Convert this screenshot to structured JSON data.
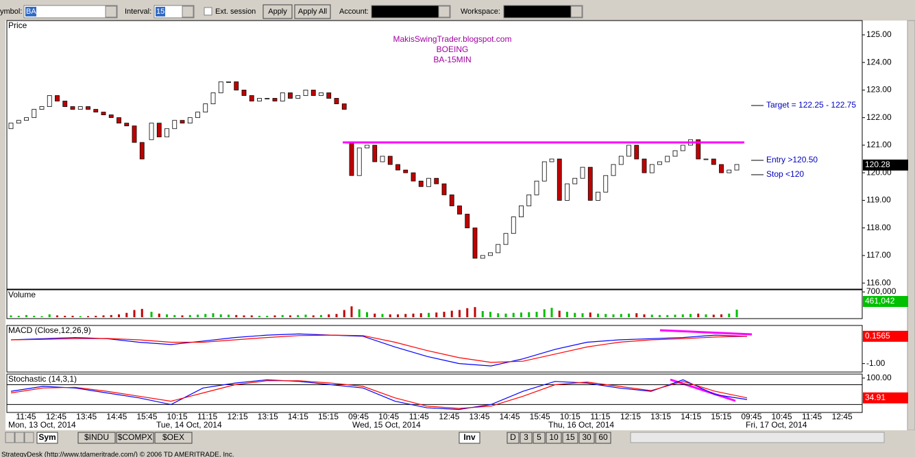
{
  "toolbar": {
    "symbol_label": "ymbol:",
    "symbol": "BA",
    "interval_label": "Interval:",
    "interval": "15",
    "ext_session": "Ext. session",
    "apply": "Apply",
    "apply_all": "Apply All",
    "account_label": "Account:",
    "workspace_label": "Workspace:"
  },
  "chart_data": [
    {
      "type": "candlestick",
      "pane_label": "Price",
      "title": [
        "MakisSwingTrader.blogspot.com",
        "BOEING",
        "BA-15MIN"
      ],
      "open": [
        121.6,
        121.8,
        121.9,
        122.0,
        122.3,
        122.4,
        122.8,
        122.6,
        122.4,
        122.3,
        122.4,
        122.3,
        122.2,
        122.1,
        122.0,
        121.8,
        121.7,
        121.1,
        121.2,
        121.8,
        121.3,
        121.6,
        121.9,
        121.8,
        122.0,
        122.2,
        122.5,
        122.9,
        123.3,
        123.3,
        123.0,
        122.8,
        122.6,
        122.7,
        122.7,
        122.6,
        122.9,
        122.7,
        122.8,
        123.0,
        122.8,
        122.9,
        122.7,
        122.5,
        121.1,
        119.9,
        120.9,
        121.0,
        120.4,
        120.6,
        120.3,
        120.1,
        120.0,
        119.7,
        119.5,
        119.8,
        119.6,
        119.2,
        118.8,
        118.5,
        118.0,
        116.9,
        117.0,
        117.1,
        117.4,
        117.8,
        118.4,
        118.8,
        119.2,
        119.7,
        120.4,
        120.5,
        119.0,
        119.6,
        119.8,
        120.2,
        119.0,
        119.3,
        119.9,
        120.3,
        120.6,
        121.0,
        120.5,
        120.0,
        120.3,
        120.4,
        120.6,
        120.8,
        121.0,
        121.2,
        120.5,
        120.5,
        120.3,
        120.0,
        120.1
      ],
      "close": [
        121.8,
        121.9,
        122.0,
        122.3,
        122.4,
        122.8,
        122.6,
        122.4,
        122.3,
        122.4,
        122.3,
        122.2,
        122.1,
        122.0,
        121.8,
        121.7,
        121.1,
        120.5,
        121.8,
        121.3,
        121.6,
        121.9,
        121.8,
        122.0,
        122.2,
        122.5,
        122.9,
        123.3,
        123.3,
        123.0,
        122.8,
        122.6,
        122.7,
        122.7,
        122.6,
        122.9,
        122.7,
        122.8,
        123.0,
        122.8,
        122.9,
        122.7,
        122.5,
        122.3,
        119.9,
        120.9,
        121.0,
        120.4,
        120.6,
        120.3,
        120.1,
        120.0,
        119.7,
        119.5,
        119.8,
        119.6,
        119.2,
        118.8,
        118.5,
        118.0,
        116.9,
        117.0,
        117.1,
        117.4,
        117.8,
        118.4,
        118.8,
        119.2,
        119.7,
        120.4,
        120.5,
        119.0,
        119.6,
        119.8,
        120.2,
        119.0,
        119.3,
        119.9,
        120.3,
        120.6,
        121.0,
        120.5,
        120.0,
        120.3,
        120.4,
        120.6,
        120.8,
        121.0,
        121.2,
        120.5,
        120.5,
        120.3,
        120.0,
        120.1,
        120.3
      ],
      "ylim": [
        115.83,
        125.47
      ],
      "yticks": [
        {
          "value": 116,
          "label": "116.00"
        },
        {
          "value": 117,
          "label": "117.00"
        },
        {
          "value": 118,
          "label": "118.00"
        },
        {
          "value": 119,
          "label": "119.00"
        },
        {
          "value": 120,
          "label": "120.00"
        },
        {
          "value": 121,
          "label": "121.00"
        },
        {
          "value": 122,
          "label": "122.00"
        },
        {
          "value": 123,
          "label": "123.00"
        },
        {
          "value": 124,
          "label": "124.00"
        },
        {
          "value": 125,
          "label": "125.00"
        }
      ],
      "last_price": {
        "value": 120.28,
        "label": "120.28"
      },
      "resistance": 121.1,
      "resistance_color": "#ff00ff",
      "annotations": [
        "Target = 122.25 - 122.75",
        "Entry >120.50",
        "Stop <120"
      ],
      "up_color": "#ffffff",
      "down_color": "#c00000"
    },
    {
      "type": "bar",
      "pane_label": "Volume",
      "values": [
        50000,
        40000,
        60000,
        40000,
        30000,
        80000,
        50000,
        40000,
        40000,
        30000,
        30000,
        40000,
        50000,
        60000,
        80000,
        120000,
        200000,
        230000,
        150000,
        100000,
        80000,
        60000,
        50000,
        60000,
        70000,
        90000,
        110000,
        80000,
        70000,
        60000,
        50000,
        50000,
        40000,
        40000,
        50000,
        60000,
        50000,
        60000,
        70000,
        50000,
        60000,
        80000,
        90000,
        200000,
        300000,
        220000,
        140000,
        100000,
        90000,
        80000,
        80000,
        90000,
        100000,
        110000,
        120000,
        130000,
        150000,
        180000,
        200000,
        250000,
        280000,
        170000,
        150000,
        110000,
        100000,
        120000,
        130000,
        140000,
        150000,
        220000,
        260000,
        180000,
        150000,
        120000,
        110000,
        130000,
        100000,
        90000,
        80000,
        90000,
        100000,
        110000,
        80000,
        70000,
        60000,
        60000,
        70000,
        80000,
        90000,
        100000,
        80000,
        70000,
        80000,
        100000,
        210000
      ],
      "ylim": [
        0,
        720000
      ],
      "yticks": [
        {
          "value": 700000,
          "label": "700,000"
        }
      ],
      "last_label": "461,042",
      "up_color": "#00c000",
      "down_color": "#c00000"
    },
    {
      "type": "line",
      "pane_label": "MACD (Close,12,26,9)",
      "series": [
        {
          "color": "#0000ff",
          "values": [
            0.0,
            0.05,
            0.1,
            0.05,
            -0.1,
            -0.2,
            -0.05,
            0.1,
            0.2,
            0.25,
            0.2,
            0.15,
            -0.3,
            -0.7,
            -1.0,
            -1.1,
            -0.8,
            -0.4,
            -0.1,
            0.0,
            0.05,
            0.1,
            0.2,
            0.15
          ]
        },
        {
          "color": "#ff0000",
          "values": [
            0.0,
            0.02,
            0.05,
            0.06,
            0.0,
            -0.1,
            -0.1,
            0.0,
            0.1,
            0.18,
            0.2,
            0.18,
            -0.1,
            -0.45,
            -0.75,
            -0.95,
            -0.9,
            -0.6,
            -0.3,
            -0.1,
            0.0,
            0.05,
            0.12,
            0.15
          ]
        }
      ],
      "ylim": [
        -1.3,
        0.55
      ],
      "yticks": [
        {
          "value": -1,
          "label": "-1.00"
        }
      ],
      "last_label": "0.1565",
      "last_color": "#ff0000"
    },
    {
      "type": "line",
      "pane_label": "Stochastic (14,3,1)",
      "series": [
        {
          "color": "#0000ff",
          "values": [
            60,
            75,
            70,
            55,
            40,
            20,
            70,
            85,
            95,
            90,
            80,
            70,
            30,
            10,
            5,
            20,
            60,
            90,
            85,
            70,
            60,
            95,
            50,
            35
          ]
        },
        {
          "color": "#ff0000",
          "values": [
            55,
            70,
            72,
            60,
            45,
            30,
            55,
            80,
            92,
            92,
            85,
            75,
            40,
            15,
            8,
            15,
            45,
            80,
            88,
            75,
            62,
            90,
            60,
            40
          ]
        }
      ],
      "ylim": [
        0,
        108
      ],
      "yticks": [
        {
          "value": 100,
          "label": "100.00"
        }
      ],
      "levels": [
        80,
        20
      ],
      "last_label": "34.91",
      "last_color": "#ff0000"
    }
  ],
  "time_axis": {
    "labels": [
      "11:45",
      "12:45",
      "13:45",
      "14:45",
      "15:45",
      "10:15",
      "11:15",
      "12:15",
      "13:15",
      "14:15",
      "15:15",
      "09:45",
      "10:45",
      "11:45",
      "12:45",
      "13:45",
      "14:45",
      "15:45",
      "10:15",
      "11:15",
      "12:15",
      "13:15",
      "14:15",
      "15:15",
      "09:45",
      "10:45",
      "11:45",
      "12:45"
    ],
    "dates": [
      "Mon, 13 Oct, 2014",
      "Tue, 14 Oct, 2014",
      "Wed, 15 Oct, 2014",
      "Thu, 16 Oct, 2014",
      "Fri, 17 Oct, 2014"
    ]
  },
  "tabs": {
    "left": [
      "Sym",
      "$INDU",
      "$COMPX",
      "$OEX"
    ],
    "right": [
      "Inv",
      "D",
      "3",
      "5",
      "10",
      "15",
      "30",
      "60"
    ]
  },
  "status": "StrategyDesk (http://www.tdameritrade.com/) © 2006 TD AMERITRADE, Inc."
}
